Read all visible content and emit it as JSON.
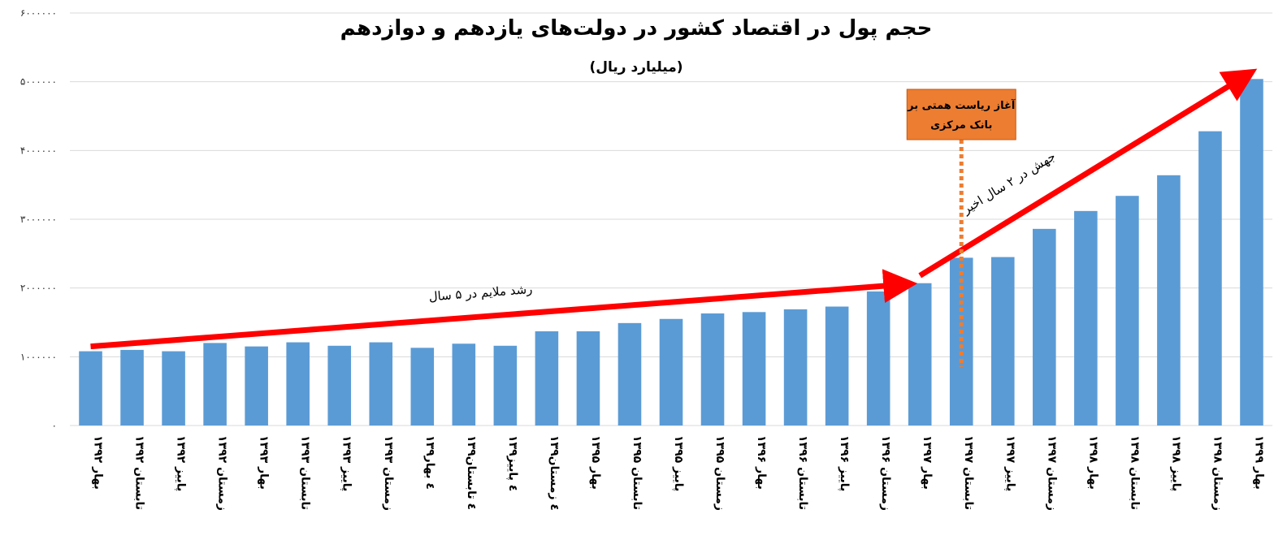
{
  "chart_data": {
    "type": "bar",
    "title": "حجم پول در اقتصاد کشور در دولت‌های یازدهم و دوازدهم",
    "subtitle": "(میلیارد ریال)",
    "ylim": [
      0,
      6000000
    ],
    "ytick_values": [
      0,
      1000000,
      2000000,
      3000000,
      4000000,
      5000000,
      6000000
    ],
    "ytick_labels": [
      "۰",
      "۱۰۰۰۰۰۰",
      "۲۰۰۰۰۰۰",
      "۳۰۰۰۰۰۰",
      "۴۰۰۰۰۰۰",
      "۵۰۰۰۰۰۰",
      "۶۰۰۰۰۰۰"
    ],
    "grid": true,
    "categories": [
      "۱۳۹۲ بهار",
      "۱۳۹۲ تابستان",
      "۱۳۹۲ پاییز",
      "۱۳۹۲ زمستان",
      "۱۳۹۳ بهار",
      "۱۳۹۳ تابستان",
      "۱۳۹۳ پاییز",
      "۱۳۹۳ زمستان",
      "۱۳۹٤ بهار",
      "۱۳۹٤ تابستان",
      "۱۳۹٤ پاییز",
      "۱۳۹٤ زمستان",
      "۱۳۹۵ بهار",
      "۱۳۹۵ تابستان",
      "۱۳۹۵ پاییز",
      "۱۳۹۵ زمستان",
      "۱۳۹۶ بهار",
      "۱۳۹۶ تابستان",
      "۱۳۹۶ پاییز",
      "۱۳۹۶ زمستان",
      "۱۳۹۷ بهار",
      "۱۳۹۷ تابستان",
      "۱۳۹۷ پاییز",
      "۱۳۹۷ زمستان",
      "۱۳۹۸ بهار",
      "۱۳۹۸ تابستان",
      "۱۳۹۸ پاییز",
      "۱۳۹۸ زمستان",
      "۱۳۹۹ بهار"
    ],
    "values": [
      1080000,
      1100000,
      1080000,
      1200000,
      1150000,
      1210000,
      1160000,
      1210000,
      1130000,
      1190000,
      1160000,
      1370000,
      1370000,
      1490000,
      1550000,
      1630000,
      1650000,
      1690000,
      1730000,
      1950000,
      2070000,
      2440000,
      2450000,
      2860000,
      3120000,
      3340000,
      3640000,
      4280000,
      5040000
    ],
    "bar_color": "#5b9bd5",
    "annotations": {
      "slow_growth": "رشد ملایم در ۵ سال",
      "jump": "جهش در ۲ سال اخیر",
      "callout_line1": "آغاز ریاست همتی بر",
      "callout_line2": "بانک مرکزی",
      "arrow_color": "#ff0000",
      "callout_color": "#ed7d31",
      "slow_arrow": {
        "from": [
          0,
          1150000
        ],
        "to": [
          20,
          2070000
        ]
      },
      "jump_arrow": {
        "from": [
          20,
          2180000
        ],
        "to": [
          28,
          5140000
        ]
      },
      "callout_at_category": 21
    }
  }
}
